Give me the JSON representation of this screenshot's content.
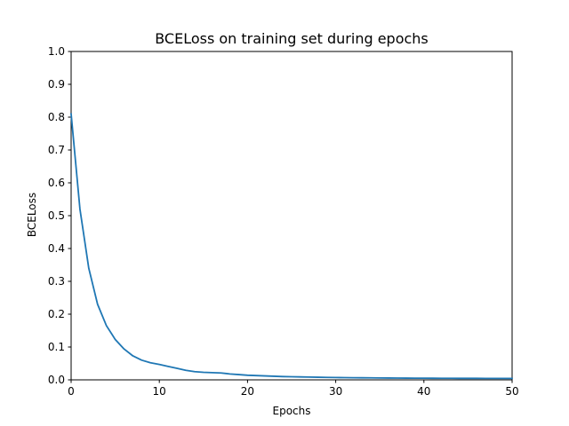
{
  "chart_data": {
    "type": "line",
    "title": "BCELoss on training set during epochs",
    "xlabel": "Epochs",
    "ylabel": "BCELoss",
    "xlim": [
      0,
      50
    ],
    "ylim": [
      0,
      1.0
    ],
    "xticks": [
      "0",
      "10",
      "20",
      "30",
      "40",
      "50"
    ],
    "yticks": [
      "0.0",
      "0.1",
      "0.2",
      "0.3",
      "0.4",
      "0.5",
      "0.6",
      "0.7",
      "0.8",
      "0.9",
      "1.0"
    ],
    "grid": false,
    "line_color": "#1f77b4",
    "series": [
      {
        "x": [
          0,
          1,
          2,
          3,
          4,
          5,
          6,
          7,
          8,
          9,
          10,
          11,
          12,
          13,
          14,
          15,
          16,
          17,
          18,
          19,
          20,
          21,
          22,
          23,
          24,
          25,
          26,
          27,
          28,
          29,
          30,
          31,
          32,
          33,
          34,
          35,
          36,
          37,
          38,
          39,
          40,
          41,
          42,
          43,
          44,
          45,
          46,
          47,
          48,
          49,
          50
        ],
        "values": [
          0.81,
          0.52,
          0.34,
          0.23,
          0.165,
          0.123,
          0.094,
          0.073,
          0.06,
          0.052,
          0.047,
          0.041,
          0.035,
          0.029,
          0.025,
          0.023,
          0.022,
          0.021,
          0.018,
          0.016,
          0.014,
          0.013,
          0.012,
          0.011,
          0.01,
          0.0095,
          0.009,
          0.0085,
          0.008,
          0.0075,
          0.007,
          0.0068,
          0.0065,
          0.0063,
          0.006,
          0.0058,
          0.0056,
          0.0054,
          0.0052,
          0.0051,
          0.005,
          0.0049,
          0.0048,
          0.0047,
          0.0046,
          0.0045,
          0.0045,
          0.0044,
          0.0044,
          0.0043,
          0.0043
        ]
      }
    ]
  }
}
